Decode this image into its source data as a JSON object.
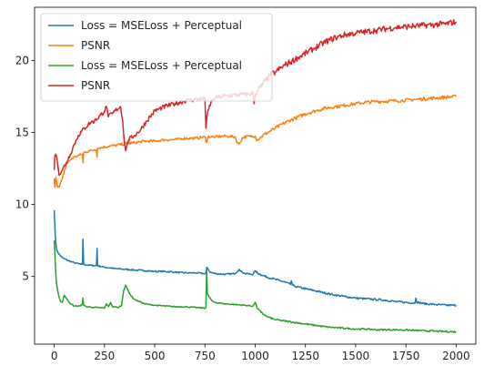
{
  "chart_data": {
    "type": "line",
    "title": "",
    "xlabel": "",
    "ylabel": "",
    "xlim": [
      -98,
      2098
    ],
    "ylim": [
      0.3,
      23.7
    ],
    "x_ticks": [
      0,
      250,
      500,
      750,
      1000,
      1250,
      1500,
      1750,
      2000
    ],
    "y_ticks": [
      5,
      10,
      15,
      20
    ],
    "grid": false,
    "legend_position": "top-left",
    "series": [
      {
        "name": "Loss = MSELoss + Perceptual",
        "color": "#1f77b4",
        "points": [
          [
            0,
            9.6
          ],
          [
            3,
            8.5
          ],
          [
            6,
            7.6
          ],
          [
            10,
            7.0
          ],
          [
            20,
            6.6
          ],
          [
            40,
            6.3
          ],
          [
            70,
            6.1
          ],
          [
            100,
            5.95
          ],
          [
            130,
            5.85
          ],
          [
            140,
            5.85
          ],
          [
            143,
            7.6
          ],
          [
            146,
            5.85
          ],
          [
            160,
            5.8
          ],
          [
            200,
            5.75
          ],
          [
            210,
            5.75
          ],
          [
            213,
            6.95
          ],
          [
            216,
            5.75
          ],
          [
            250,
            5.65
          ],
          [
            300,
            5.55
          ],
          [
            350,
            5.5
          ],
          [
            400,
            5.45
          ],
          [
            450,
            5.4
          ],
          [
            500,
            5.35
          ],
          [
            550,
            5.35
          ],
          [
            600,
            5.3
          ],
          [
            650,
            5.25
          ],
          [
            700,
            5.25
          ],
          [
            750,
            5.2
          ],
          [
            755,
            5.2
          ],
          [
            758,
            5.6
          ],
          [
            765,
            5.55
          ],
          [
            775,
            5.3
          ],
          [
            800,
            5.2
          ],
          [
            850,
            5.15
          ],
          [
            900,
            5.2
          ],
          [
            920,
            5.5
          ],
          [
            930,
            5.35
          ],
          [
            950,
            5.2
          ],
          [
            990,
            5.15
          ],
          [
            1000,
            5.4
          ],
          [
            1010,
            5.25
          ],
          [
            1050,
            5.0
          ],
          [
            1100,
            4.8
          ],
          [
            1150,
            4.6
          ],
          [
            1175,
            4.45
          ],
          [
            1180,
            4.7
          ],
          [
            1185,
            4.4
          ],
          [
            1200,
            4.3
          ],
          [
            1250,
            4.15
          ],
          [
            1300,
            4.0
          ],
          [
            1350,
            3.85
          ],
          [
            1400,
            3.7
          ],
          [
            1450,
            3.6
          ],
          [
            1500,
            3.5
          ],
          [
            1550,
            3.45
          ],
          [
            1600,
            3.4
          ],
          [
            1650,
            3.35
          ],
          [
            1700,
            3.25
          ],
          [
            1750,
            3.2
          ],
          [
            1795,
            3.15
          ],
          [
            1800,
            3.5
          ],
          [
            1805,
            3.2
          ],
          [
            1850,
            3.1
          ],
          [
            1900,
            3.05
          ],
          [
            1950,
            3.0
          ],
          [
            2000,
            3.0
          ]
        ]
      },
      {
        "name": "PSNR",
        "color": "#ff7f0e",
        "points": [
          [
            0,
            11.8
          ],
          [
            3,
            11.2
          ],
          [
            8,
            11.9
          ],
          [
            15,
            11.3
          ],
          [
            25,
            11.2
          ],
          [
            40,
            11.8
          ],
          [
            60,
            12.8
          ],
          [
            80,
            13.1
          ],
          [
            100,
            13.3
          ],
          [
            120,
            13.4
          ],
          [
            140,
            13.5
          ],
          [
            143,
            12.9
          ],
          [
            146,
            13.6
          ],
          [
            170,
            13.7
          ],
          [
            200,
            13.8
          ],
          [
            210,
            13.8
          ],
          [
            213,
            13.3
          ],
          [
            216,
            13.9
          ],
          [
            250,
            14.0
          ],
          [
            300,
            14.1
          ],
          [
            350,
            14.2
          ],
          [
            400,
            14.3
          ],
          [
            450,
            14.4
          ],
          [
            500,
            14.4
          ],
          [
            550,
            14.5
          ],
          [
            600,
            14.5
          ],
          [
            650,
            14.6
          ],
          [
            700,
            14.6
          ],
          [
            750,
            14.7
          ],
          [
            758,
            14.3
          ],
          [
            765,
            14.7
          ],
          [
            800,
            14.7
          ],
          [
            850,
            14.75
          ],
          [
            900,
            14.7
          ],
          [
            910,
            14.3
          ],
          [
            920,
            14.2
          ],
          [
            935,
            14.6
          ],
          [
            950,
            14.7
          ],
          [
            1000,
            14.75
          ],
          [
            1010,
            14.5
          ],
          [
            1050,
            14.9
          ],
          [
            1100,
            15.3
          ],
          [
            1150,
            15.7
          ],
          [
            1200,
            16.0
          ],
          [
            1250,
            16.3
          ],
          [
            1300,
            16.5
          ],
          [
            1350,
            16.7
          ],
          [
            1400,
            16.8
          ],
          [
            1450,
            16.9
          ],
          [
            1500,
            17.0
          ],
          [
            1550,
            17.1
          ],
          [
            1600,
            17.15
          ],
          [
            1700,
            17.2
          ],
          [
            1800,
            17.3
          ],
          [
            1900,
            17.4
          ],
          [
            2000,
            17.5
          ]
        ]
      },
      {
        "name": "Loss = MSELoss + Perceptual",
        "color": "#2ca02c",
        "points": [
          [
            0,
            7.5
          ],
          [
            3,
            6.7
          ],
          [
            6,
            5.7
          ],
          [
            10,
            4.6
          ],
          [
            20,
            3.8
          ],
          [
            30,
            3.3
          ],
          [
            40,
            3.2
          ],
          [
            50,
            3.7
          ],
          [
            60,
            3.5
          ],
          [
            80,
            3.1
          ],
          [
            100,
            2.95
          ],
          [
            130,
            2.95
          ],
          [
            140,
            3.1
          ],
          [
            143,
            3.5
          ],
          [
            146,
            3.0
          ],
          [
            160,
            2.9
          ],
          [
            200,
            2.85
          ],
          [
            250,
            2.8
          ],
          [
            260,
            3.1
          ],
          [
            270,
            2.9
          ],
          [
            280,
            3.2
          ],
          [
            290,
            2.9
          ],
          [
            320,
            2.85
          ],
          [
            335,
            3.0
          ],
          [
            345,
            4.0
          ],
          [
            355,
            4.4
          ],
          [
            365,
            4.1
          ],
          [
            380,
            3.7
          ],
          [
            400,
            3.4
          ],
          [
            450,
            3.1
          ],
          [
            500,
            3.0
          ],
          [
            550,
            2.95
          ],
          [
            600,
            2.9
          ],
          [
            650,
            2.9
          ],
          [
            700,
            2.85
          ],
          [
            750,
            2.8
          ],
          [
            755,
            2.85
          ],
          [
            758,
            5.5
          ],
          [
            762,
            3.8
          ],
          [
            770,
            3.6
          ],
          [
            785,
            3.3
          ],
          [
            800,
            3.2
          ],
          [
            850,
            3.1
          ],
          [
            900,
            3.05
          ],
          [
            950,
            3.0
          ],
          [
            990,
            2.95
          ],
          [
            1000,
            3.2
          ],
          [
            1010,
            2.8
          ],
          [
            1030,
            2.5
          ],
          [
            1060,
            2.2
          ],
          [
            1100,
            2.0
          ],
          [
            1150,
            1.9
          ],
          [
            1200,
            1.8
          ],
          [
            1250,
            1.7
          ],
          [
            1300,
            1.6
          ],
          [
            1350,
            1.5
          ],
          [
            1400,
            1.45
          ],
          [
            1450,
            1.4
          ],
          [
            1500,
            1.35
          ],
          [
            1550,
            1.35
          ],
          [
            1600,
            1.3
          ],
          [
            1700,
            1.3
          ],
          [
            1800,
            1.25
          ],
          [
            1900,
            1.2
          ],
          [
            2000,
            1.15
          ]
        ]
      },
      {
        "name": "PSNR",
        "color": "#d62728",
        "points": [
          [
            0,
            12.4
          ],
          [
            3,
            13.4
          ],
          [
            8,
            13.5
          ],
          [
            15,
            13.0
          ],
          [
            25,
            12.1
          ],
          [
            40,
            12.4
          ],
          [
            60,
            12.9
          ],
          [
            80,
            13.5
          ],
          [
            100,
            14.2
          ],
          [
            120,
            14.8
          ],
          [
            150,
            15.3
          ],
          [
            180,
            15.7
          ],
          [
            200,
            15.8
          ],
          [
            230,
            16.2
          ],
          [
            250,
            16.5
          ],
          [
            260,
            16.8
          ],
          [
            270,
            16.1
          ],
          [
            290,
            16.3
          ],
          [
            310,
            16.6
          ],
          [
            330,
            16.8
          ],
          [
            340,
            15.9
          ],
          [
            350,
            14.2
          ],
          [
            355,
            13.8
          ],
          [
            370,
            14.5
          ],
          [
            400,
            14.8
          ],
          [
            430,
            15.2
          ],
          [
            460,
            15.8
          ],
          [
            500,
            16.5
          ],
          [
            550,
            16.8
          ],
          [
            600,
            17.0
          ],
          [
            650,
            17.2
          ],
          [
            700,
            17.3
          ],
          [
            750,
            17.35
          ],
          [
            755,
            15.3
          ],
          [
            762,
            16.3
          ],
          [
            770,
            16.7
          ],
          [
            780,
            17.1
          ],
          [
            800,
            17.4
          ],
          [
            850,
            17.55
          ],
          [
            900,
            17.6
          ],
          [
            950,
            17.65
          ],
          [
            990,
            17.7
          ],
          [
            995,
            17.0
          ],
          [
            1000,
            17.65
          ],
          [
            1010,
            17.9
          ],
          [
            1030,
            18.2
          ],
          [
            1050,
            18.6
          ],
          [
            1075,
            19.0
          ],
          [
            1100,
            19.2
          ],
          [
            1150,
            19.7
          ],
          [
            1200,
            20.1
          ],
          [
            1250,
            20.5
          ],
          [
            1300,
            20.9
          ],
          [
            1350,
            21.3
          ],
          [
            1400,
            21.6
          ],
          [
            1450,
            21.8
          ],
          [
            1500,
            21.9
          ],
          [
            1550,
            22.0
          ],
          [
            1600,
            22.1
          ],
          [
            1650,
            22.2
          ],
          [
            1700,
            22.3
          ],
          [
            1750,
            22.35
          ],
          [
            1800,
            22.4
          ],
          [
            1850,
            22.45
          ],
          [
            1900,
            22.5
          ],
          [
            1950,
            22.55
          ],
          [
            2000,
            22.7
          ]
        ]
      }
    ]
  }
}
